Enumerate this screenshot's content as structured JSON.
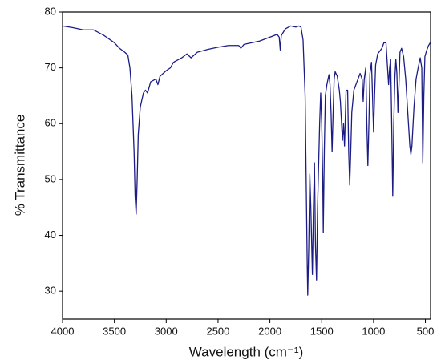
{
  "chart_data": {
    "type": "line",
    "x_label": "Wavelength (cm⁻¹)",
    "y_label": "% Transmittance",
    "color": "#1c1c85",
    "xlim": [
      4000,
      450
    ],
    "ylim": [
      25,
      80
    ],
    "xticks": [
      4000,
      3500,
      3000,
      2500,
      2000,
      1500,
      1000,
      500
    ],
    "yticks": [
      30,
      40,
      50,
      60,
      70,
      80
    ],
    "x": [
      4000,
      3900,
      3800,
      3700,
      3600,
      3500,
      3450,
      3400,
      3370,
      3350,
      3330,
      3310,
      3300,
      3290,
      3280,
      3270,
      3250,
      3220,
      3200,
      3180,
      3150,
      3100,
      3080,
      3060,
      3000,
      2960,
      2930,
      2900,
      2850,
      2800,
      2760,
      2700,
      2600,
      2500,
      2400,
      2300,
      2280,
      2250,
      2100,
      2000,
      1930,
      1910,
      1900,
      1890,
      1850,
      1800,
      1750,
      1720,
      1700,
      1680,
      1660,
      1650,
      1640,
      1635,
      1625,
      1615,
      1605,
      1590,
      1580,
      1570,
      1560,
      1550,
      1540,
      1520,
      1510,
      1500,
      1490,
      1485,
      1475,
      1465,
      1450,
      1430,
      1420,
      1410,
      1400,
      1390,
      1380,
      1370,
      1350,
      1330,
      1320,
      1300,
      1290,
      1280,
      1265,
      1250,
      1240,
      1230,
      1220,
      1210,
      1190,
      1170,
      1150,
      1130,
      1110,
      1100,
      1090,
      1075,
      1065,
      1055,
      1045,
      1035,
      1020,
      1010,
      1000,
      990,
      980,
      960,
      940,
      920,
      900,
      880,
      865,
      855,
      845,
      835,
      825,
      815,
      805,
      795,
      785,
      775,
      765,
      755,
      745,
      730,
      710,
      690,
      670,
      650,
      640,
      630,
      610,
      590,
      570,
      550,
      535,
      525,
      515,
      505,
      490,
      470,
      450
    ],
    "values": [
      77.5,
      77.2,
      76.8,
      76.8,
      75.8,
      74.5,
      73.5,
      72.8,
      72.3,
      70,
      65,
      55,
      47,
      43.8,
      50,
      58,
      63,
      65.5,
      66,
      65.5,
      67.5,
      68,
      67,
      68.5,
      69.5,
      70,
      71,
      71.3,
      71.8,
      72.5,
      71.8,
      72.8,
      73.3,
      73.7,
      74,
      74,
      73.5,
      74.2,
      74.8,
      75.5,
      76,
      75.5,
      73.2,
      75.8,
      77,
      77.5,
      77.3,
      77.5,
      77.3,
      75,
      65,
      50,
      35,
      29.3,
      38,
      51,
      45,
      33,
      45,
      53,
      38,
      32,
      45,
      60,
      65.5,
      60,
      50,
      40.5,
      55,
      65,
      67,
      68.8,
      67,
      62,
      55,
      62,
      68,
      69.3,
      68.5,
      66,
      64,
      57,
      60,
      56,
      66,
      66,
      55,
      49,
      55,
      62,
      66,
      67,
      68,
      69,
      68,
      64,
      68,
      70,
      60,
      52.5,
      60,
      69,
      71,
      65,
      58.5,
      65,
      70.5,
      72.5,
      73,
      73.5,
      74.5,
      74.5,
      70,
      67,
      70,
      71.5,
      60,
      47,
      60,
      68,
      71.5,
      69,
      62,
      67,
      72.8,
      73.5,
      72,
      68,
      62,
      56,
      54.5,
      56,
      63,
      68,
      70,
      71.8,
      70,
      53,
      65,
      72,
      73,
      74,
      74.6
    ]
  }
}
